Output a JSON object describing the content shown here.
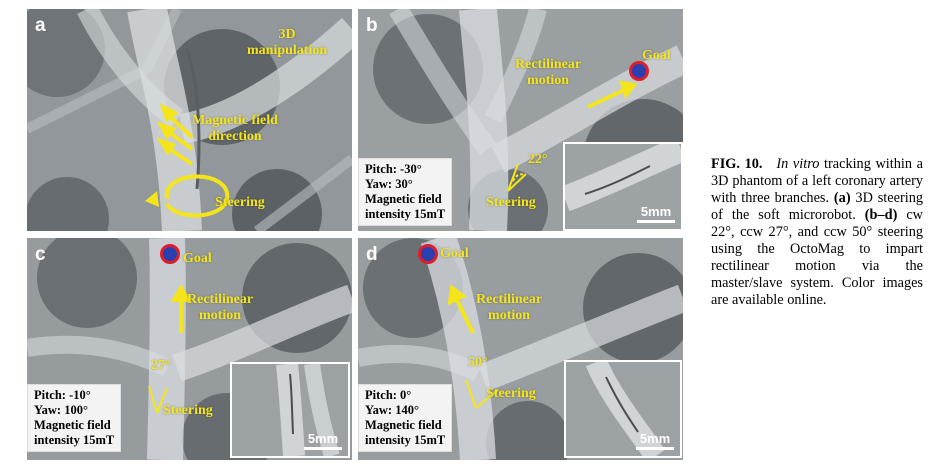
{
  "panels": {
    "a": {
      "letter": "a",
      "labels": {
        "manip1": "3D",
        "manip2": "manipulation",
        "field1": "Magnetic field",
        "field2": "direction",
        "steering": "Steering"
      }
    },
    "b": {
      "letter": "b",
      "labels": {
        "rect1": "Rectilinear",
        "rect2": "motion",
        "goal": "Goal",
        "angle": "22°",
        "steering": "Steering"
      },
      "info": {
        "pitch": "Pitch: -30°",
        "yaw": "Yaw:   30°",
        "field1": "Magnetic   field",
        "field2": "intensity 15mT"
      },
      "scale": "5mm"
    },
    "c": {
      "letter": "c",
      "labels": {
        "goal": "Goal",
        "rect1": "Rectilinear",
        "rect2": "motion",
        "angle": "27°",
        "steering": "Steering"
      },
      "info": {
        "pitch": "Pitch: -10°",
        "yaw": "Yaw:   100°",
        "field1": "Magnetic   field",
        "field2": "intensity 15mT"
      },
      "scale": "5mm"
    },
    "d": {
      "letter": "d",
      "labels": {
        "goal": "Goal",
        "rect1": "Rectilinear",
        "rect2": "motion",
        "angle": "50°",
        "steering": "Steering"
      },
      "info": {
        "pitch": "Pitch:  0°",
        "yaw": "Yaw:   140°",
        "field1": "Magnetic   field",
        "field2": "intensity 15mT"
      },
      "scale": "5mm"
    }
  },
  "caption": {
    "fig": "FIG. 10.",
    "invitro": "In vitro",
    "part1": " tracking within a 3D phantom of a left coronary artery with three branches. ",
    "a_label": "(a)",
    "part2": " 3D steering of the soft microrobot. ",
    "bd_label": "(b–d)",
    "part3": " cw 22°, ccw 27°, and ccw 50° steering using the OctoMag to impart rectilinear motion via the master/slave system. Color images are available online."
  },
  "colors": {
    "label_yellow": "#f4e51a",
    "goal_red": "#e01e2a",
    "goal_blue": "#2a3fb0"
  }
}
